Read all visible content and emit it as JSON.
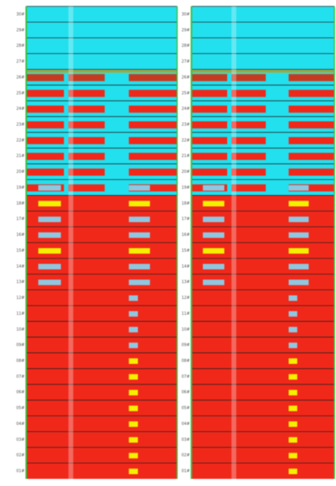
{
  "panels": [
    {
      "row_labels": [
        "30#",
        "29#",
        "28#",
        "27#",
        "26#",
        "25#",
        "24#",
        "23#",
        "22#",
        "21#",
        "20#",
        "19#",
        "18#",
        "17#",
        "16#",
        "15#",
        "14#",
        "13#",
        "12#",
        "11#",
        "10#",
        "09#",
        "08#",
        "07#",
        "06#",
        "05#",
        "04#",
        "03#",
        "02#",
        "01#"
      ]
    },
    {
      "row_labels": [
        "30#",
        "29#",
        "28#",
        "27#",
        "26#",
        "25#",
        "24#",
        "23#",
        "22#",
        "21#",
        "20#",
        "19#",
        "18#",
        "17#",
        "16#",
        "15#",
        "14#",
        "13#",
        "12#",
        "11#",
        "10#",
        "09#",
        "08#",
        "07#",
        "06#",
        "05#",
        "04#",
        "03#",
        "02#",
        "01#"
      ]
    }
  ]
}
